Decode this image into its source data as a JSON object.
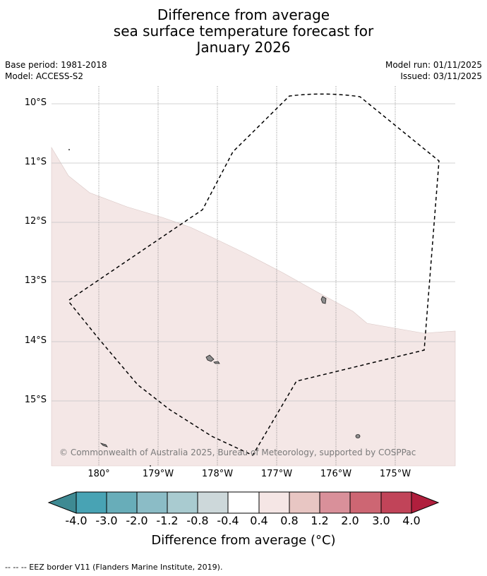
{
  "title": {
    "line1": "Difference from average",
    "line2": "sea surface temperature forecast for",
    "line3": "January 2026"
  },
  "meta": {
    "base_period": "Base period: 1981-2018",
    "model": "Model: ACCESS-S2",
    "model_run": "Model run: 01/11/2025",
    "issued": "Issued: 03/11/2025"
  },
  "map": {
    "lat_labels": [
      "10°S",
      "11°S",
      "12°S",
      "13°S",
      "14°S",
      "15°S"
    ],
    "lon_labels": [
      "180°",
      "179°W",
      "178°W",
      "177°W",
      "176°W",
      "175°W"
    ],
    "anomaly_region_color": "#f4e7e6",
    "land_color": "#8c8c8c",
    "copyright": "© Commonwealth of Australia 2025, Bureau of Meteorology, supported by COSPPac"
  },
  "colorbar": {
    "tick_labels": [
      "-4.0",
      "-3.0",
      "-2.0",
      "-1.2",
      "-0.8",
      "-0.4",
      "0.4",
      "0.8",
      "1.2",
      "2.0",
      "3.0",
      "4.0"
    ],
    "colors": [
      "#3e8a93",
      "#48a3b4",
      "#68adb9",
      "#8bbcc6",
      "#a9cbd0",
      "#cdd8da",
      "#ffffff",
      "#f5e6e5",
      "#e8c6c3",
      "#d9909a",
      "#cd6673",
      "#c14459",
      "#b01f3d"
    ],
    "label": "Difference from average (°C)"
  },
  "footnote": "--  --  -- EEZ border V11 (Flanders Marine Institute, 2019)."
}
